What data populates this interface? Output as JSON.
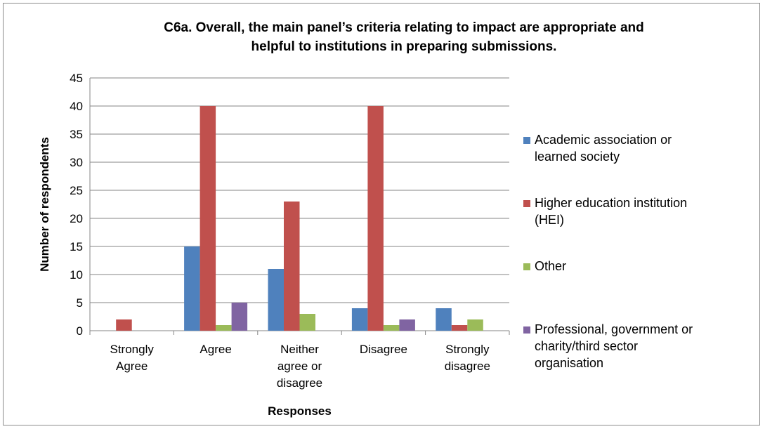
{
  "chart_data": {
    "type": "bar",
    "title_lines": [
      "C6a. Overall, the main panel’s criteria relating to impact are appropriate and",
      "helpful to institutions in preparing submissions."
    ],
    "xlabel": "Responses",
    "ylabel": "Number of respondents",
    "ylim": [
      0,
      45
    ],
    "ytick_step": 5,
    "grid": "horizontal",
    "legend_position": "right",
    "categories": [
      [
        "Strongly",
        "Agree"
      ],
      [
        "Agree"
      ],
      [
        "Neither",
        "agree or",
        "disagree"
      ],
      [
        "Disagree"
      ],
      [
        "Strongly",
        "disagree"
      ]
    ],
    "series": [
      {
        "name_lines": [
          "Academic association or",
          "learned society"
        ],
        "color": "#4f81bd",
        "values": [
          0,
          15,
          11,
          4,
          4
        ]
      },
      {
        "name_lines": [
          "Higher education institution",
          "(HEI)"
        ],
        "color": "#c0504d",
        "values": [
          2,
          40,
          23,
          40,
          1
        ]
      },
      {
        "name_lines": [
          "Other"
        ],
        "color": "#9bbb59",
        "values": [
          0,
          1,
          3,
          1,
          2
        ]
      },
      {
        "name_lines": [
          "Professional, government or",
          "charity/third sector",
          "organisation"
        ],
        "color": "#8064a2",
        "values": [
          0,
          5,
          0,
          2,
          0
        ]
      }
    ]
  }
}
